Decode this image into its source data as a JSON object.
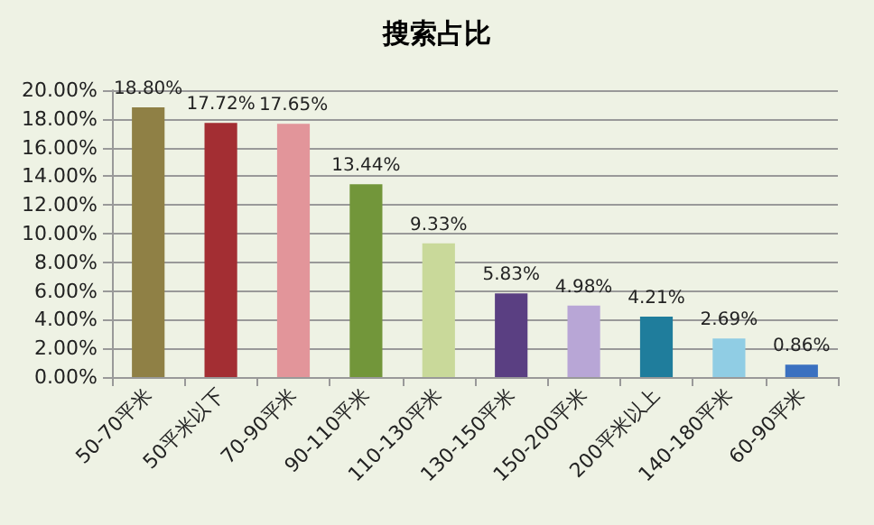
{
  "chart_data": {
    "type": "bar",
    "title": "搜索占比",
    "categories": [
      "50-70平米",
      "50平米以下",
      "70-90平米",
      "90-110平米",
      "110-130平米",
      "130-150平米",
      "150-200平米",
      "200平米以上",
      "140-180平米",
      "60-90平米"
    ],
    "values": [
      18.8,
      17.72,
      17.65,
      13.44,
      9.33,
      5.83,
      4.98,
      4.21,
      2.69,
      0.86
    ],
    "value_labels": [
      "18.80%",
      "17.72%",
      "17.65%",
      "13.44%",
      "9.33%",
      "5.83%",
      "4.98%",
      "4.21%",
      "2.69%",
      "0.86%"
    ],
    "colors": [
      "#8f8045",
      "#a32e33",
      "#e2959a",
      "#72963a",
      "#c9d99a",
      "#5a3f82",
      "#b8a6d6",
      "#1f7d9c",
      "#90cde4",
      "#3a70c0"
    ],
    "ylim": [
      0,
      20
    ],
    "yticks": [
      {
        "value": 0,
        "label": "0.00%"
      },
      {
        "value": 2,
        "label": "2.00%"
      },
      {
        "value": 4,
        "label": "4.00%"
      },
      {
        "value": 6,
        "label": "6.00%"
      },
      {
        "value": 8,
        "label": "8.00%"
      },
      {
        "value": 10,
        "label": "10.00%"
      },
      {
        "value": 12,
        "label": "12.00%"
      },
      {
        "value": 14,
        "label": "14.00%"
      },
      {
        "value": 16,
        "label": "16.00%"
      },
      {
        "value": 18,
        "label": "18.00%"
      },
      {
        "value": 20,
        "label": "20.00%"
      }
    ],
    "grid": "y"
  }
}
